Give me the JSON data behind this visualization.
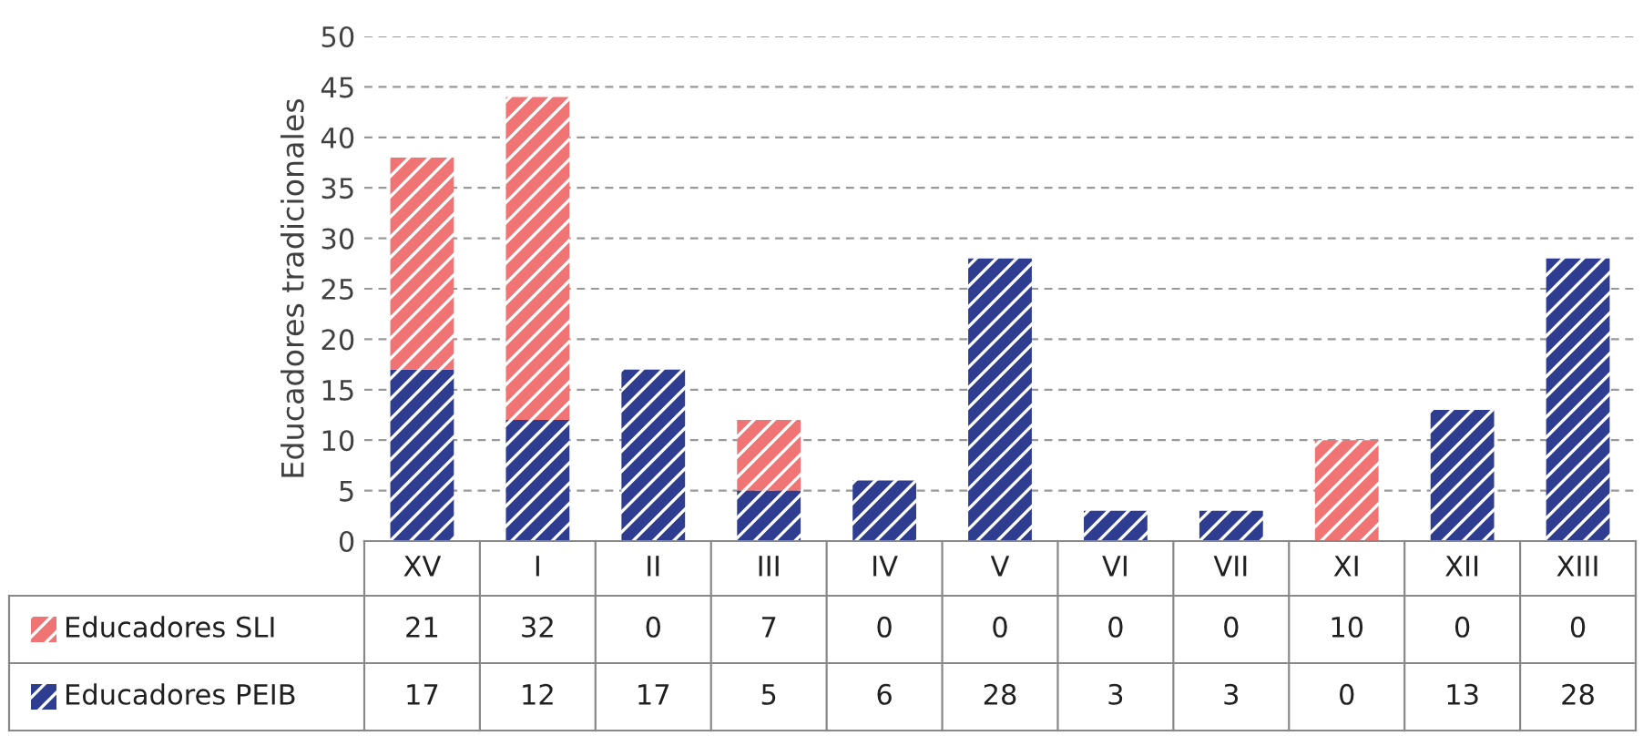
{
  "chart_data": {
    "type": "bar",
    "stacked": true,
    "ylabel": "Educadores tradicionales",
    "categories": [
      "XV",
      "I",
      "II",
      "III",
      "IV",
      "V",
      "VI",
      "VII",
      "XI",
      "XII",
      "XIII"
    ],
    "series": [
      {
        "name": "Educadores PEIB",
        "color": "#2e3d8f",
        "values": [
          17,
          12,
          17,
          5,
          6,
          28,
          3,
          3,
          0,
          13,
          28
        ]
      },
      {
        "name": "Educadores SLI",
        "color": "#f07474",
        "values": [
          21,
          32,
          0,
          7,
          0,
          0,
          0,
          0,
          10,
          0,
          0
        ]
      }
    ],
    "ylim": [
      0,
      50
    ],
    "yticks": [
      0,
      5,
      10,
      15,
      20,
      25,
      30,
      35,
      40,
      45,
      50
    ],
    "grid": "y",
    "data_labels": true,
    "legend": "bottom"
  }
}
